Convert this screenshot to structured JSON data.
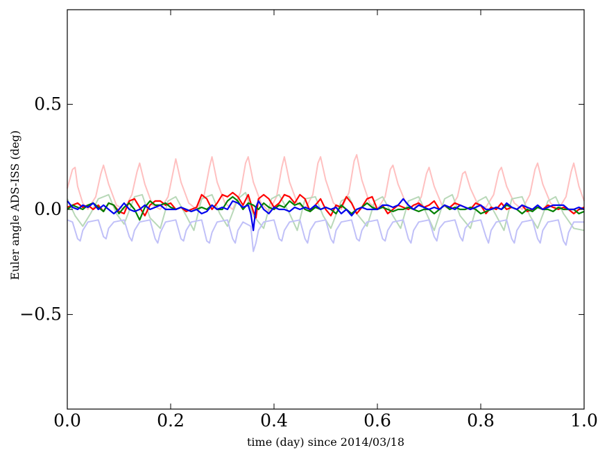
{
  "chart_data": {
    "type": "line",
    "title": "",
    "xlabel": "time (day) since 2014/03/18",
    "ylabel": "Euler angle ADS-ISS (deg)",
    "xlim": [
      0.0,
      1.0
    ],
    "ylim": [
      -0.95,
      0.95
    ],
    "xticks": [
      0.0,
      0.2,
      0.4,
      0.6,
      0.8,
      1.0
    ],
    "xtick_labels": [
      "0.0",
      "0.2",
      "0.4",
      "0.6",
      "0.8",
      "1.0"
    ],
    "yticks": [
      -0.5,
      0.0,
      0.5
    ],
    "ytick_labels": [
      "−0.5",
      "0.0",
      "0.5"
    ],
    "grid": false,
    "legend": "none",
    "series": [
      {
        "color": "#ffc0c0",
        "x": [
          0.0,
          0.01,
          0.015,
          0.02,
          0.03,
          0.04,
          0.055,
          0.065,
          0.07,
          0.08,
          0.095,
          0.11,
          0.125,
          0.135,
          0.14,
          0.15,
          0.165,
          0.18,
          0.195,
          0.205,
          0.21,
          0.22,
          0.235,
          0.25,
          0.265,
          0.275,
          0.28,
          0.29,
          0.305,
          0.32,
          0.335,
          0.345,
          0.35,
          0.36,
          0.375,
          0.39,
          0.405,
          0.415,
          0.42,
          0.43,
          0.445,
          0.46,
          0.475,
          0.485,
          0.49,
          0.5,
          0.515,
          0.53,
          0.545,
          0.555,
          0.56,
          0.57,
          0.585,
          0.6,
          0.615,
          0.625,
          0.63,
          0.64,
          0.655,
          0.67,
          0.685,
          0.695,
          0.7,
          0.71,
          0.725,
          0.74,
          0.755,
          0.765,
          0.77,
          0.78,
          0.795,
          0.81,
          0.825,
          0.835,
          0.84,
          0.85,
          0.865,
          0.88,
          0.895,
          0.905,
          0.91,
          0.92,
          0.935,
          0.95,
          0.965,
          0.975,
          0.98,
          0.99,
          1.0
        ],
        "y": [
          0.1,
          0.19,
          0.2,
          0.11,
          0.03,
          0.0,
          0.06,
          0.17,
          0.21,
          0.12,
          0.02,
          0.0,
          0.07,
          0.18,
          0.22,
          0.12,
          0.02,
          0.0,
          0.06,
          0.18,
          0.24,
          0.13,
          0.03,
          0.0,
          0.07,
          0.2,
          0.25,
          0.13,
          0.03,
          0.0,
          0.08,
          0.22,
          0.25,
          0.13,
          0.03,
          -0.01,
          0.06,
          0.2,
          0.25,
          0.13,
          0.03,
          0.0,
          0.07,
          0.22,
          0.25,
          0.14,
          0.03,
          0.0,
          0.08,
          0.23,
          0.26,
          0.14,
          0.03,
          0.0,
          0.06,
          0.19,
          0.21,
          0.12,
          0.03,
          0.0,
          0.06,
          0.17,
          0.2,
          0.11,
          0.02,
          0.0,
          0.06,
          0.17,
          0.18,
          0.1,
          0.02,
          0.01,
          0.07,
          0.18,
          0.2,
          0.11,
          0.03,
          0.0,
          0.07,
          0.19,
          0.22,
          0.12,
          0.03,
          0.0,
          0.06,
          0.18,
          0.22,
          0.11,
          0.04
        ]
      },
      {
        "color": "#b8d8b8",
        "x": [
          0.0,
          0.015,
          0.03,
          0.045,
          0.06,
          0.08,
          0.095,
          0.11,
          0.13,
          0.145,
          0.16,
          0.18,
          0.195,
          0.21,
          0.23,
          0.245,
          0.26,
          0.28,
          0.295,
          0.31,
          0.33,
          0.345,
          0.36,
          0.38,
          0.395,
          0.41,
          0.43,
          0.445,
          0.46,
          0.48,
          0.495,
          0.51,
          0.53,
          0.545,
          0.56,
          0.58,
          0.595,
          0.61,
          0.63,
          0.645,
          0.66,
          0.68,
          0.695,
          0.71,
          0.73,
          0.745,
          0.76,
          0.78,
          0.795,
          0.81,
          0.83,
          0.845,
          0.86,
          0.88,
          0.895,
          0.91,
          0.93,
          0.945,
          0.96,
          0.98,
          1.0
        ],
        "y": [
          0.05,
          -0.03,
          -0.08,
          -0.02,
          0.05,
          0.07,
          -0.02,
          -0.07,
          0.06,
          0.07,
          -0.04,
          -0.09,
          0.04,
          0.06,
          -0.03,
          -0.1,
          0.05,
          0.07,
          -0.02,
          -0.08,
          0.05,
          0.08,
          -0.03,
          -0.09,
          0.05,
          0.07,
          -0.02,
          -0.1,
          0.05,
          0.06,
          -0.03,
          -0.09,
          0.04,
          0.06,
          -0.02,
          -0.08,
          0.04,
          0.06,
          -0.03,
          -0.09,
          0.04,
          0.06,
          -0.02,
          -0.1,
          0.05,
          0.07,
          -0.03,
          -0.09,
          0.04,
          0.06,
          -0.03,
          -0.1,
          0.05,
          0.06,
          -0.03,
          -0.09,
          0.04,
          0.06,
          -0.02,
          -0.09,
          -0.1
        ]
      },
      {
        "color": "#c0c0f8",
        "x": [
          0.0,
          0.01,
          0.02,
          0.025,
          0.03,
          0.04,
          0.06,
          0.07,
          0.075,
          0.08,
          0.09,
          0.11,
          0.12,
          0.125,
          0.13,
          0.14,
          0.16,
          0.17,
          0.175,
          0.18,
          0.19,
          0.21,
          0.22,
          0.225,
          0.23,
          0.24,
          0.26,
          0.27,
          0.275,
          0.28,
          0.29,
          0.31,
          0.32,
          0.325,
          0.33,
          0.34,
          0.355,
          0.36,
          0.365,
          0.37,
          0.38,
          0.4,
          0.41,
          0.415,
          0.42,
          0.43,
          0.45,
          0.46,
          0.465,
          0.47,
          0.48,
          0.5,
          0.51,
          0.515,
          0.52,
          0.53,
          0.55,
          0.56,
          0.565,
          0.57,
          0.58,
          0.6,
          0.61,
          0.615,
          0.62,
          0.63,
          0.65,
          0.66,
          0.665,
          0.67,
          0.68,
          0.7,
          0.71,
          0.715,
          0.72,
          0.73,
          0.75,
          0.76,
          0.765,
          0.77,
          0.78,
          0.8,
          0.81,
          0.815,
          0.82,
          0.83,
          0.85,
          0.86,
          0.865,
          0.87,
          0.88,
          0.9,
          0.91,
          0.915,
          0.92,
          0.93,
          0.95,
          0.96,
          0.965,
          0.97,
          0.98,
          1.0
        ],
        "y": [
          -0.05,
          -0.06,
          -0.14,
          -0.15,
          -0.1,
          -0.06,
          -0.05,
          -0.13,
          -0.14,
          -0.09,
          -0.06,
          -0.05,
          -0.13,
          -0.15,
          -0.1,
          -0.06,
          -0.05,
          -0.14,
          -0.16,
          -0.11,
          -0.06,
          -0.05,
          -0.14,
          -0.15,
          -0.1,
          -0.06,
          -0.05,
          -0.15,
          -0.16,
          -0.11,
          -0.06,
          -0.05,
          -0.14,
          -0.16,
          -0.1,
          -0.06,
          -0.08,
          -0.2,
          -0.16,
          -0.1,
          -0.06,
          -0.05,
          -0.14,
          -0.15,
          -0.1,
          -0.06,
          -0.05,
          -0.14,
          -0.16,
          -0.1,
          -0.06,
          -0.05,
          -0.14,
          -0.16,
          -0.1,
          -0.06,
          -0.05,
          -0.14,
          -0.15,
          -0.1,
          -0.06,
          -0.05,
          -0.14,
          -0.15,
          -0.1,
          -0.06,
          -0.05,
          -0.14,
          -0.16,
          -0.1,
          -0.06,
          -0.05,
          -0.13,
          -0.15,
          -0.09,
          -0.06,
          -0.05,
          -0.13,
          -0.15,
          -0.09,
          -0.06,
          -0.05,
          -0.13,
          -0.16,
          -0.1,
          -0.06,
          -0.05,
          -0.14,
          -0.16,
          -0.1,
          -0.06,
          -0.05,
          -0.14,
          -0.16,
          -0.1,
          -0.06,
          -0.05,
          -0.15,
          -0.17,
          -0.11,
          -0.06,
          -0.06
        ]
      },
      {
        "color": "#ff0000",
        "x": [
          0.0,
          0.01,
          0.02,
          0.03,
          0.04,
          0.05,
          0.06,
          0.07,
          0.08,
          0.09,
          0.1,
          0.11,
          0.12,
          0.13,
          0.14,
          0.15,
          0.16,
          0.17,
          0.18,
          0.19,
          0.2,
          0.21,
          0.22,
          0.23,
          0.24,
          0.25,
          0.26,
          0.27,
          0.28,
          0.29,
          0.3,
          0.31,
          0.32,
          0.33,
          0.34,
          0.35,
          0.36,
          0.365,
          0.37,
          0.38,
          0.39,
          0.4,
          0.41,
          0.42,
          0.43,
          0.44,
          0.45,
          0.46,
          0.47,
          0.48,
          0.49,
          0.5,
          0.51,
          0.52,
          0.53,
          0.54,
          0.55,
          0.56,
          0.57,
          0.58,
          0.59,
          0.6,
          0.61,
          0.62,
          0.63,
          0.64,
          0.65,
          0.66,
          0.67,
          0.68,
          0.69,
          0.7,
          0.71,
          0.72,
          0.73,
          0.74,
          0.75,
          0.76,
          0.77,
          0.78,
          0.79,
          0.8,
          0.81,
          0.82,
          0.83,
          0.84,
          0.85,
          0.86,
          0.87,
          0.88,
          0.89,
          0.9,
          0.91,
          0.92,
          0.93,
          0.94,
          0.95,
          0.96,
          0.97,
          0.98,
          0.99,
          1.0
        ],
        "y": [
          0.01,
          0.02,
          0.03,
          0.01,
          0.02,
          0.0,
          0.02,
          -0.01,
          0.03,
          0.02,
          -0.01,
          -0.02,
          0.04,
          0.05,
          0.01,
          -0.03,
          0.02,
          0.04,
          0.04,
          0.02,
          0.03,
          0.0,
          0.01,
          -0.01,
          0.0,
          0.01,
          0.07,
          0.05,
          0.0,
          0.03,
          0.07,
          0.06,
          0.08,
          0.06,
          0.02,
          0.07,
          -0.01,
          -0.04,
          0.05,
          0.07,
          0.05,
          0.01,
          0.03,
          0.07,
          0.06,
          0.03,
          0.07,
          0.05,
          -0.01,
          0.02,
          0.05,
          0.0,
          -0.03,
          0.02,
          0.01,
          0.06,
          0.03,
          -0.02,
          0.01,
          0.05,
          0.06,
          0.0,
          0.02,
          -0.02,
          0.0,
          0.02,
          0.01,
          0.0,
          0.02,
          0.03,
          0.01,
          0.02,
          0.04,
          0.0,
          0.02,
          0.01,
          0.03,
          0.02,
          0.01,
          0.0,
          0.03,
          0.02,
          -0.02,
          0.01,
          0.0,
          0.03,
          0.0,
          0.01,
          0.0,
          0.02,
          -0.01,
          0.0,
          0.01,
          0.0,
          0.02,
          0.01,
          0.0,
          0.01,
          0.0,
          -0.02,
          0.0,
          0.01
        ]
      },
      {
        "color": "#008000",
        "x": [
          0.0,
          0.01,
          0.02,
          0.03,
          0.04,
          0.05,
          0.06,
          0.07,
          0.08,
          0.09,
          0.1,
          0.11,
          0.12,
          0.13,
          0.14,
          0.15,
          0.16,
          0.17,
          0.18,
          0.19,
          0.2,
          0.21,
          0.22,
          0.23,
          0.24,
          0.25,
          0.26,
          0.27,
          0.28,
          0.29,
          0.3,
          0.31,
          0.32,
          0.33,
          0.34,
          0.35,
          0.36,
          0.37,
          0.38,
          0.39,
          0.4,
          0.41,
          0.42,
          0.43,
          0.44,
          0.45,
          0.46,
          0.47,
          0.48,
          0.49,
          0.5,
          0.51,
          0.52,
          0.53,
          0.54,
          0.55,
          0.56,
          0.57,
          0.58,
          0.59,
          0.6,
          0.61,
          0.62,
          0.63,
          0.64,
          0.65,
          0.66,
          0.67,
          0.68,
          0.69,
          0.7,
          0.71,
          0.72,
          0.73,
          0.74,
          0.75,
          0.76,
          0.77,
          0.78,
          0.79,
          0.8,
          0.81,
          0.82,
          0.83,
          0.84,
          0.85,
          0.86,
          0.87,
          0.88,
          0.89,
          0.9,
          0.91,
          0.92,
          0.93,
          0.94,
          0.95,
          0.96,
          0.97,
          0.98,
          0.99,
          1.0
        ],
        "y": [
          0.0,
          0.02,
          0.01,
          0.0,
          0.02,
          0.03,
          0.01,
          -0.01,
          0.03,
          0.02,
          -0.02,
          0.01,
          0.03,
          0.0,
          -0.05,
          0.01,
          0.04,
          0.02,
          0.02,
          0.03,
          0.01,
          0.0,
          0.01,
          0.0,
          -0.01,
          0.0,
          0.01,
          0.0,
          0.02,
          0.0,
          0.0,
          0.04,
          0.06,
          0.04,
          0.0,
          0.03,
          0.02,
          0.0,
          0.03,
          0.01,
          0.0,
          0.02,
          0.01,
          0.04,
          0.02,
          0.03,
          0.0,
          -0.01,
          0.01,
          0.0,
          0.01,
          0.0,
          -0.02,
          0.02,
          0.0,
          -0.02,
          0.0,
          0.01,
          0.03,
          0.01,
          0.0,
          0.01,
          0.0,
          -0.01,
          0.0,
          0.0,
          0.01,
          0.0,
          -0.01,
          0.0,
          0.0,
          -0.02,
          0.0,
          0.02,
          0.0,
          0.01,
          0.0,
          0.0,
          0.01,
          0.0,
          -0.02,
          -0.01,
          0.0,
          0.01,
          0.0,
          0.02,
          0.01,
          0.0,
          -0.02,
          0.0,
          -0.01,
          0.01,
          0.0,
          0.0,
          -0.01,
          0.01,
          0.0,
          0.0,
          0.0,
          -0.02,
          -0.01
        ]
      },
      {
        "color": "#0000ee",
        "x": [
          0.0,
          0.01,
          0.02,
          0.03,
          0.04,
          0.05,
          0.06,
          0.07,
          0.08,
          0.09,
          0.1,
          0.11,
          0.12,
          0.13,
          0.14,
          0.15,
          0.16,
          0.17,
          0.18,
          0.19,
          0.2,
          0.21,
          0.22,
          0.23,
          0.24,
          0.25,
          0.26,
          0.27,
          0.28,
          0.29,
          0.3,
          0.31,
          0.32,
          0.33,
          0.34,
          0.35,
          0.355,
          0.36,
          0.365,
          0.37,
          0.38,
          0.39,
          0.4,
          0.41,
          0.42,
          0.43,
          0.44,
          0.45,
          0.46,
          0.47,
          0.48,
          0.49,
          0.5,
          0.51,
          0.52,
          0.53,
          0.54,
          0.55,
          0.56,
          0.57,
          0.58,
          0.59,
          0.6,
          0.61,
          0.62,
          0.63,
          0.64,
          0.65,
          0.66,
          0.67,
          0.68,
          0.69,
          0.7,
          0.71,
          0.72,
          0.73,
          0.74,
          0.75,
          0.76,
          0.77,
          0.78,
          0.79,
          0.8,
          0.81,
          0.82,
          0.83,
          0.84,
          0.85,
          0.86,
          0.87,
          0.88,
          0.89,
          0.9,
          0.91,
          0.92,
          0.93,
          0.94,
          0.95,
          0.96,
          0.97,
          0.98,
          0.99,
          1.0
        ],
        "y": [
          0.04,
          0.01,
          0.0,
          0.02,
          0.01,
          0.03,
          0.0,
          0.02,
          0.0,
          -0.02,
          0.0,
          0.03,
          0.0,
          -0.01,
          0.0,
          0.02,
          0.0,
          0.01,
          0.02,
          0.0,
          0.0,
          0.0,
          0.01,
          0.0,
          -0.01,
          0.0,
          -0.02,
          -0.01,
          0.02,
          0.0,
          0.01,
          0.0,
          0.04,
          0.03,
          0.01,
          0.02,
          -0.02,
          -0.1,
          0.01,
          0.04,
          0.0,
          -0.02,
          0.01,
          0.0,
          0.0,
          -0.01,
          0.01,
          0.0,
          0.01,
          0.0,
          0.02,
          0.0,
          0.01,
          0.0,
          0.01,
          -0.02,
          0.0,
          -0.03,
          0.0,
          0.01,
          0.0,
          0.0,
          0.0,
          0.02,
          0.02,
          0.01,
          0.02,
          0.05,
          0.02,
          0.0,
          0.02,
          0.01,
          0.0,
          0.01,
          0.0,
          0.02,
          0.01,
          0.0,
          0.02,
          0.01,
          0.0,
          0.01,
          0.02,
          0.0,
          0.0,
          0.01,
          0.0,
          0.03,
          0.01,
          0.0,
          0.02,
          0.01,
          0.0,
          0.02,
          0.0,
          0.01,
          0.02,
          0.02,
          0.02,
          0.0,
          0.0,
          0.01,
          0.0
        ]
      }
    ]
  }
}
